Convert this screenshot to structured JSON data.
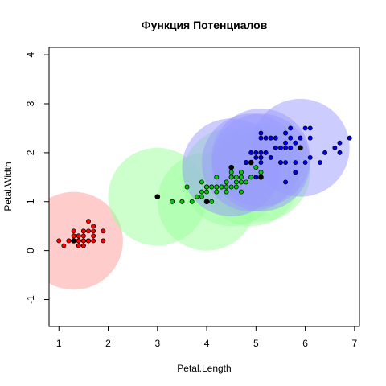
{
  "chart_data": {
    "type": "scatter",
    "title": "Функция Потенциалов",
    "xlabel": "Petal.Length",
    "ylabel": "Petal.Width",
    "xlim": [
      0.8,
      7.1
    ],
    "ylim": [
      -1.55,
      4.15
    ],
    "x_ticks": [
      "1",
      "2",
      "3",
      "4",
      "5",
      "6",
      "7"
    ],
    "y_ticks": [
      "-1",
      "0",
      "1",
      "2",
      "3",
      "4"
    ],
    "grid": false,
    "colors": {
      "red_fill": "#ff9999",
      "green_fill": "#99ff99",
      "blue_fill": "#9999ff",
      "red_point": "#ff0000",
      "green_point": "#00cc00",
      "blue_point": "#0000ee",
      "center_point": "#000000"
    },
    "circles": [
      {
        "x": 1.3,
        "y": 0.2,
        "r": 1.0,
        "color": "red"
      },
      {
        "x": 3.0,
        "y": 1.1,
        "r": 1.0,
        "color": "green"
      },
      {
        "x": 4.0,
        "y": 1.0,
        "r": 1.0,
        "color": "green"
      },
      {
        "x": 4.5,
        "y": 1.5,
        "r": 1.0,
        "color": "green"
      },
      {
        "x": 4.9,
        "y": 1.5,
        "r": 1.0,
        "color": "green"
      },
      {
        "x": 5.1,
        "y": 1.6,
        "r": 1.0,
        "color": "green"
      },
      {
        "x": 4.5,
        "y": 1.7,
        "r": 1.0,
        "color": "blue"
      },
      {
        "x": 4.9,
        "y": 1.8,
        "r": 1.0,
        "color": "blue"
      },
      {
        "x": 5.1,
        "y": 1.8,
        "r": 1.0,
        "color": "blue"
      },
      {
        "x": 5.1,
        "y": 1.9,
        "r": 1.0,
        "color": "blue"
      },
      {
        "x": 5.9,
        "y": 2.1,
        "r": 1.0,
        "color": "blue"
      }
    ],
    "series": [
      {
        "class": "red",
        "points": [
          [
            1.4,
            0.2
          ],
          [
            1.4,
            0.2
          ],
          [
            1.3,
            0.2
          ],
          [
            1.5,
            0.2
          ],
          [
            1.4,
            0.2
          ],
          [
            1.7,
            0.4
          ],
          [
            1.4,
            0.3
          ],
          [
            1.5,
            0.2
          ],
          [
            1.4,
            0.2
          ],
          [
            1.5,
            0.1
          ],
          [
            1.5,
            0.2
          ],
          [
            1.6,
            0.2
          ],
          [
            1.4,
            0.1
          ],
          [
            1.1,
            0.1
          ],
          [
            1.2,
            0.2
          ],
          [
            1.5,
            0.4
          ],
          [
            1.3,
            0.4
          ],
          [
            1.4,
            0.3
          ],
          [
            1.7,
            0.3
          ],
          [
            1.5,
            0.3
          ],
          [
            1.7,
            0.2
          ],
          [
            1.5,
            0.4
          ],
          [
            1.0,
            0.2
          ],
          [
            1.7,
            0.5
          ],
          [
            1.9,
            0.2
          ],
          [
            1.6,
            0.2
          ],
          [
            1.6,
            0.4
          ],
          [
            1.5,
            0.2
          ],
          [
            1.4,
            0.2
          ],
          [
            1.6,
            0.2
          ],
          [
            1.6,
            0.2
          ],
          [
            1.5,
            0.4
          ],
          [
            1.5,
            0.1
          ],
          [
            1.4,
            0.2
          ],
          [
            1.5,
            0.2
          ],
          [
            1.2,
            0.2
          ],
          [
            1.3,
            0.2
          ],
          [
            1.4,
            0.1
          ],
          [
            1.3,
            0.2
          ],
          [
            1.5,
            0.2
          ],
          [
            1.3,
            0.3
          ],
          [
            1.3,
            0.3
          ],
          [
            1.3,
            0.2
          ],
          [
            1.6,
            0.6
          ],
          [
            1.9,
            0.4
          ],
          [
            1.4,
            0.3
          ],
          [
            1.6,
            0.2
          ],
          [
            1.4,
            0.2
          ],
          [
            1.5,
            0.2
          ],
          [
            1.4,
            0.2
          ]
        ]
      },
      {
        "class": "green",
        "points": [
          [
            4.7,
            1.4
          ],
          [
            4.5,
            1.5
          ],
          [
            4.9,
            1.5
          ],
          [
            4.0,
            1.3
          ],
          [
            4.6,
            1.5
          ],
          [
            4.5,
            1.3
          ],
          [
            4.7,
            1.6
          ],
          [
            3.3,
            1.0
          ],
          [
            4.6,
            1.3
          ],
          [
            3.9,
            1.4
          ],
          [
            3.5,
            1.0
          ],
          [
            4.2,
            1.5
          ],
          [
            4.0,
            1.0
          ],
          [
            4.7,
            1.4
          ],
          [
            3.6,
            1.3
          ],
          [
            4.4,
            1.4
          ],
          [
            4.5,
            1.5
          ],
          [
            4.1,
            1.0
          ],
          [
            4.5,
            1.5
          ],
          [
            3.9,
            1.1
          ],
          [
            4.8,
            1.8
          ],
          [
            4.0,
            1.3
          ],
          [
            4.9,
            1.5
          ],
          [
            4.7,
            1.2
          ],
          [
            4.3,
            1.3
          ],
          [
            4.4,
            1.4
          ],
          [
            4.8,
            1.4
          ],
          [
            5.0,
            1.7
          ],
          [
            4.5,
            1.5
          ],
          [
            3.5,
            1.0
          ],
          [
            3.8,
            1.1
          ],
          [
            3.7,
            1.0
          ],
          [
            3.9,
            1.2
          ],
          [
            5.1,
            1.6
          ],
          [
            4.5,
            1.5
          ],
          [
            4.5,
            1.6
          ],
          [
            4.7,
            1.5
          ],
          [
            4.4,
            1.3
          ],
          [
            4.1,
            1.3
          ],
          [
            4.0,
            1.3
          ],
          [
            4.4,
            1.2
          ],
          [
            4.6,
            1.4
          ],
          [
            4.0,
            1.2
          ],
          [
            3.3,
            1.0
          ],
          [
            4.2,
            1.3
          ],
          [
            4.2,
            1.2
          ],
          [
            4.2,
            1.3
          ],
          [
            4.3,
            1.3
          ],
          [
            3.0,
            1.1
          ],
          [
            4.1,
            1.3
          ]
        ]
      },
      {
        "class": "blue",
        "points": [
          [
            6.0,
            2.5
          ],
          [
            5.1,
            1.9
          ],
          [
            5.9,
            2.1
          ],
          [
            5.6,
            1.8
          ],
          [
            5.8,
            2.2
          ],
          [
            6.6,
            2.1
          ],
          [
            4.5,
            1.7
          ],
          [
            6.3,
            1.8
          ],
          [
            5.8,
            1.8
          ],
          [
            6.1,
            2.5
          ],
          [
            5.1,
            2.0
          ],
          [
            5.3,
            1.9
          ],
          [
            5.5,
            2.1
          ],
          [
            5.0,
            2.0
          ],
          [
            5.1,
            2.4
          ],
          [
            5.3,
            2.3
          ],
          [
            5.5,
            1.8
          ],
          [
            6.7,
            2.2
          ],
          [
            6.9,
            2.3
          ],
          [
            5.0,
            1.5
          ],
          [
            5.7,
            2.3
          ],
          [
            4.9,
            2.0
          ],
          [
            6.7,
            2.0
          ],
          [
            4.9,
            1.8
          ],
          [
            5.7,
            2.1
          ],
          [
            6.0,
            1.8
          ],
          [
            4.8,
            1.8
          ],
          [
            4.9,
            1.8
          ],
          [
            5.6,
            2.1
          ],
          [
            5.8,
            1.6
          ],
          [
            6.1,
            1.9
          ],
          [
            6.4,
            2.0
          ],
          [
            5.6,
            2.2
          ],
          [
            5.1,
            1.5
          ],
          [
            5.6,
            1.4
          ],
          [
            6.1,
            2.3
          ],
          [
            5.6,
            2.4
          ],
          [
            5.5,
            1.8
          ],
          [
            4.8,
            1.8
          ],
          [
            5.4,
            2.1
          ],
          [
            5.6,
            2.4
          ],
          [
            5.1,
            2.3
          ],
          [
            5.1,
            1.9
          ],
          [
            5.9,
            2.3
          ],
          [
            5.7,
            2.5
          ],
          [
            5.2,
            2.3
          ],
          [
            5.0,
            1.9
          ],
          [
            5.2,
            2.0
          ],
          [
            5.4,
            2.3
          ],
          [
            5.1,
            1.8
          ]
        ]
      }
    ],
    "centers": [
      [
        1.3,
        0.2
      ],
      [
        3.0,
        1.1
      ],
      [
        4.0,
        1.0
      ],
      [
        4.5,
        1.7
      ],
      [
        4.9,
        1.8
      ],
      [
        5.1,
        1.5
      ],
      [
        5.9,
        2.1
      ]
    ]
  }
}
